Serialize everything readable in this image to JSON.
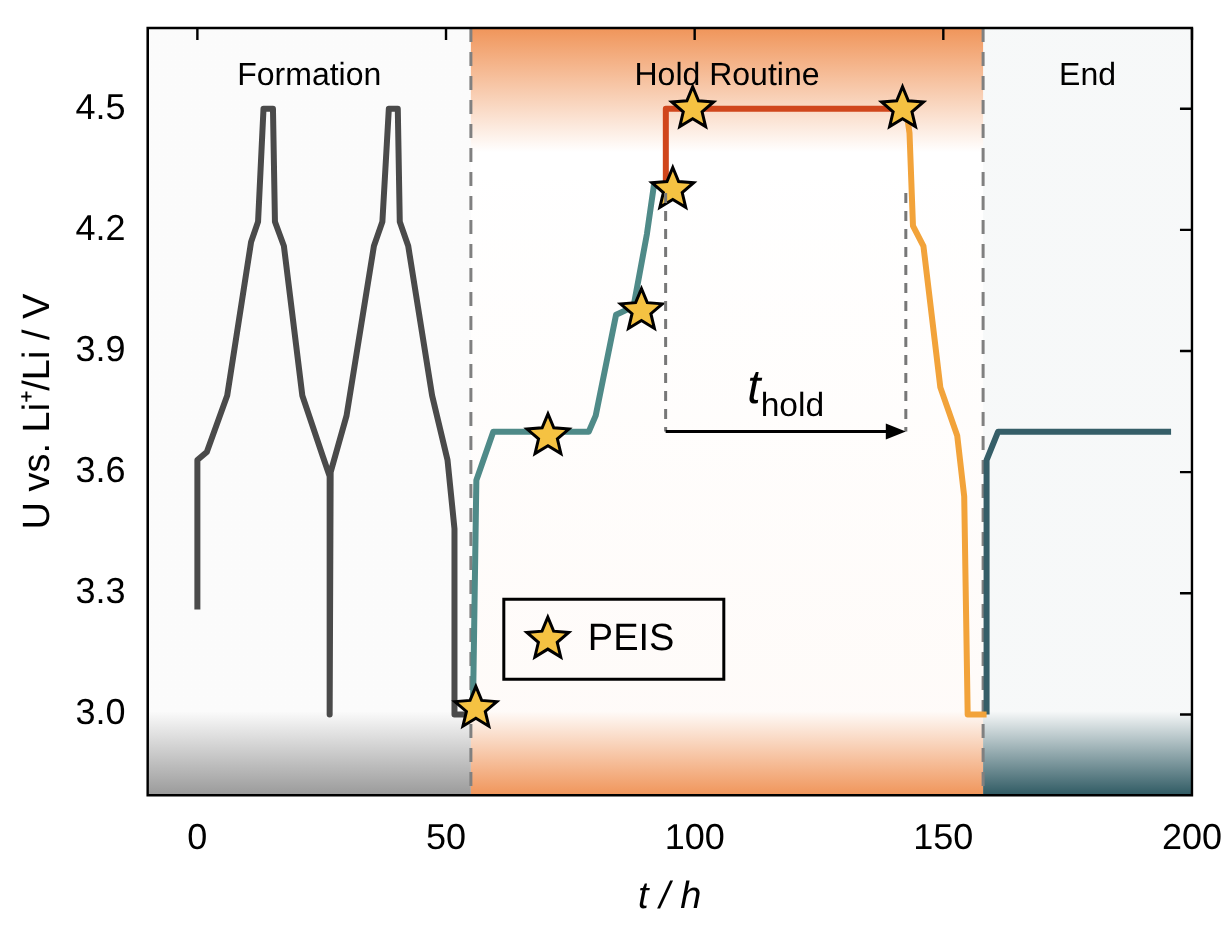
{
  "chart_data": {
    "type": "line",
    "xlabel": "t / h",
    "ylabel": "U vs. Li⁺/Li / V",
    "xlim": [
      -10,
      200
    ],
    "xticks": [
      0,
      50,
      100,
      150,
      200
    ],
    "ylim": [
      2.8,
      4.7
    ],
    "yticks": [
      {
        "value": 3,
        "label": "3.0"
      },
      3.3,
      3.6,
      3.9,
      4.2,
      4.5
    ],
    "legend": "bottom",
    "series": [
      {
        "color": "#4a4a4a",
        "marker": "none",
        "x": [
          0,
          0,
          1.9,
          6,
          10.8,
          12.2,
          13.3,
          15.2,
          15.6,
          17.4,
          21.1,
          25.2,
          26.6,
          26.6,
          26.8,
          30,
          35.5,
          37.2,
          38.5,
          40.3,
          40.7,
          42.4,
          47.2,
          50.3,
          51.7,
          51.7,
          55.4
        ],
        "values": [
          3.26,
          3.63,
          3.65,
          3.79,
          4.17,
          4.22,
          4.5,
          4.5,
          4.22,
          4.16,
          3.79,
          3.64,
          3.59,
          3.0,
          3.6,
          3.74,
          4.16,
          4.22,
          4.5,
          4.5,
          4.22,
          4.16,
          3.79,
          3.63,
          3.46,
          3.0,
          3.0
        ]
      },
      {
        "color": "#4f8a88",
        "marker": "none",
        "x": [
          55.4,
          56.1,
          59.5,
          78.7,
          80.1,
          84.2,
          87.7,
          90.4,
          91.8,
          94.2
        ],
        "values": [
          3.0,
          3.58,
          3.7,
          3.7,
          3.74,
          3.99,
          4.01,
          4.19,
          4.31,
          4.31
        ]
      },
      {
        "color": "#d0461c",
        "marker": "none",
        "x": [
          94.2,
          94.2,
          142.5
        ],
        "values": [
          4.31,
          4.5,
          4.5
        ]
      },
      {
        "color": "#f2a33a",
        "marker": "none",
        "x": [
          142.5,
          143.2,
          143.9,
          146,
          149.4,
          152.8,
          154.2,
          154.9,
          158.7
        ],
        "values": [
          4.5,
          4.44,
          4.21,
          4.16,
          3.81,
          3.69,
          3.54,
          3.0,
          3.0
        ]
      },
      {
        "color": "#355e68",
        "marker": "none",
        "x": [
          158.7,
          158.7,
          161,
          195.8
        ],
        "values": [
          3.0,
          3.63,
          3.7,
          3.7
        ]
      },
      {
        "type": "scatter",
        "name": "PEIS",
        "color": "#f5c242",
        "marker": "star",
        "x": [
          56,
          70.5,
          89.3,
          95.6,
          99.6,
          141.8
        ],
        "values": [
          3.015,
          3.69,
          4.0,
          4.3,
          4.5,
          4.5
        ]
      }
    ],
    "ref_lines": [
      {
        "axis": "x",
        "value": 55,
        "color": "#808080",
        "line_style": "dashed"
      },
      {
        "axis": "x",
        "value": 158,
        "color": "#808080",
        "line_style": "dashed"
      }
    ],
    "bands": [
      {
        "axis": "x",
        "from": -10,
        "to": 55,
        "label": "Formation",
        "color": "#9a9a9a"
      },
      {
        "axis": "x",
        "from": 55,
        "to": 158,
        "label": "Hold Routine",
        "color": "#f0955a"
      },
      {
        "axis": "x",
        "from": 158,
        "to": 200,
        "label": "End",
        "color": "#2f5a63"
      }
    ],
    "annotations": [
      "t$_{hold}$"
    ]
  }
}
